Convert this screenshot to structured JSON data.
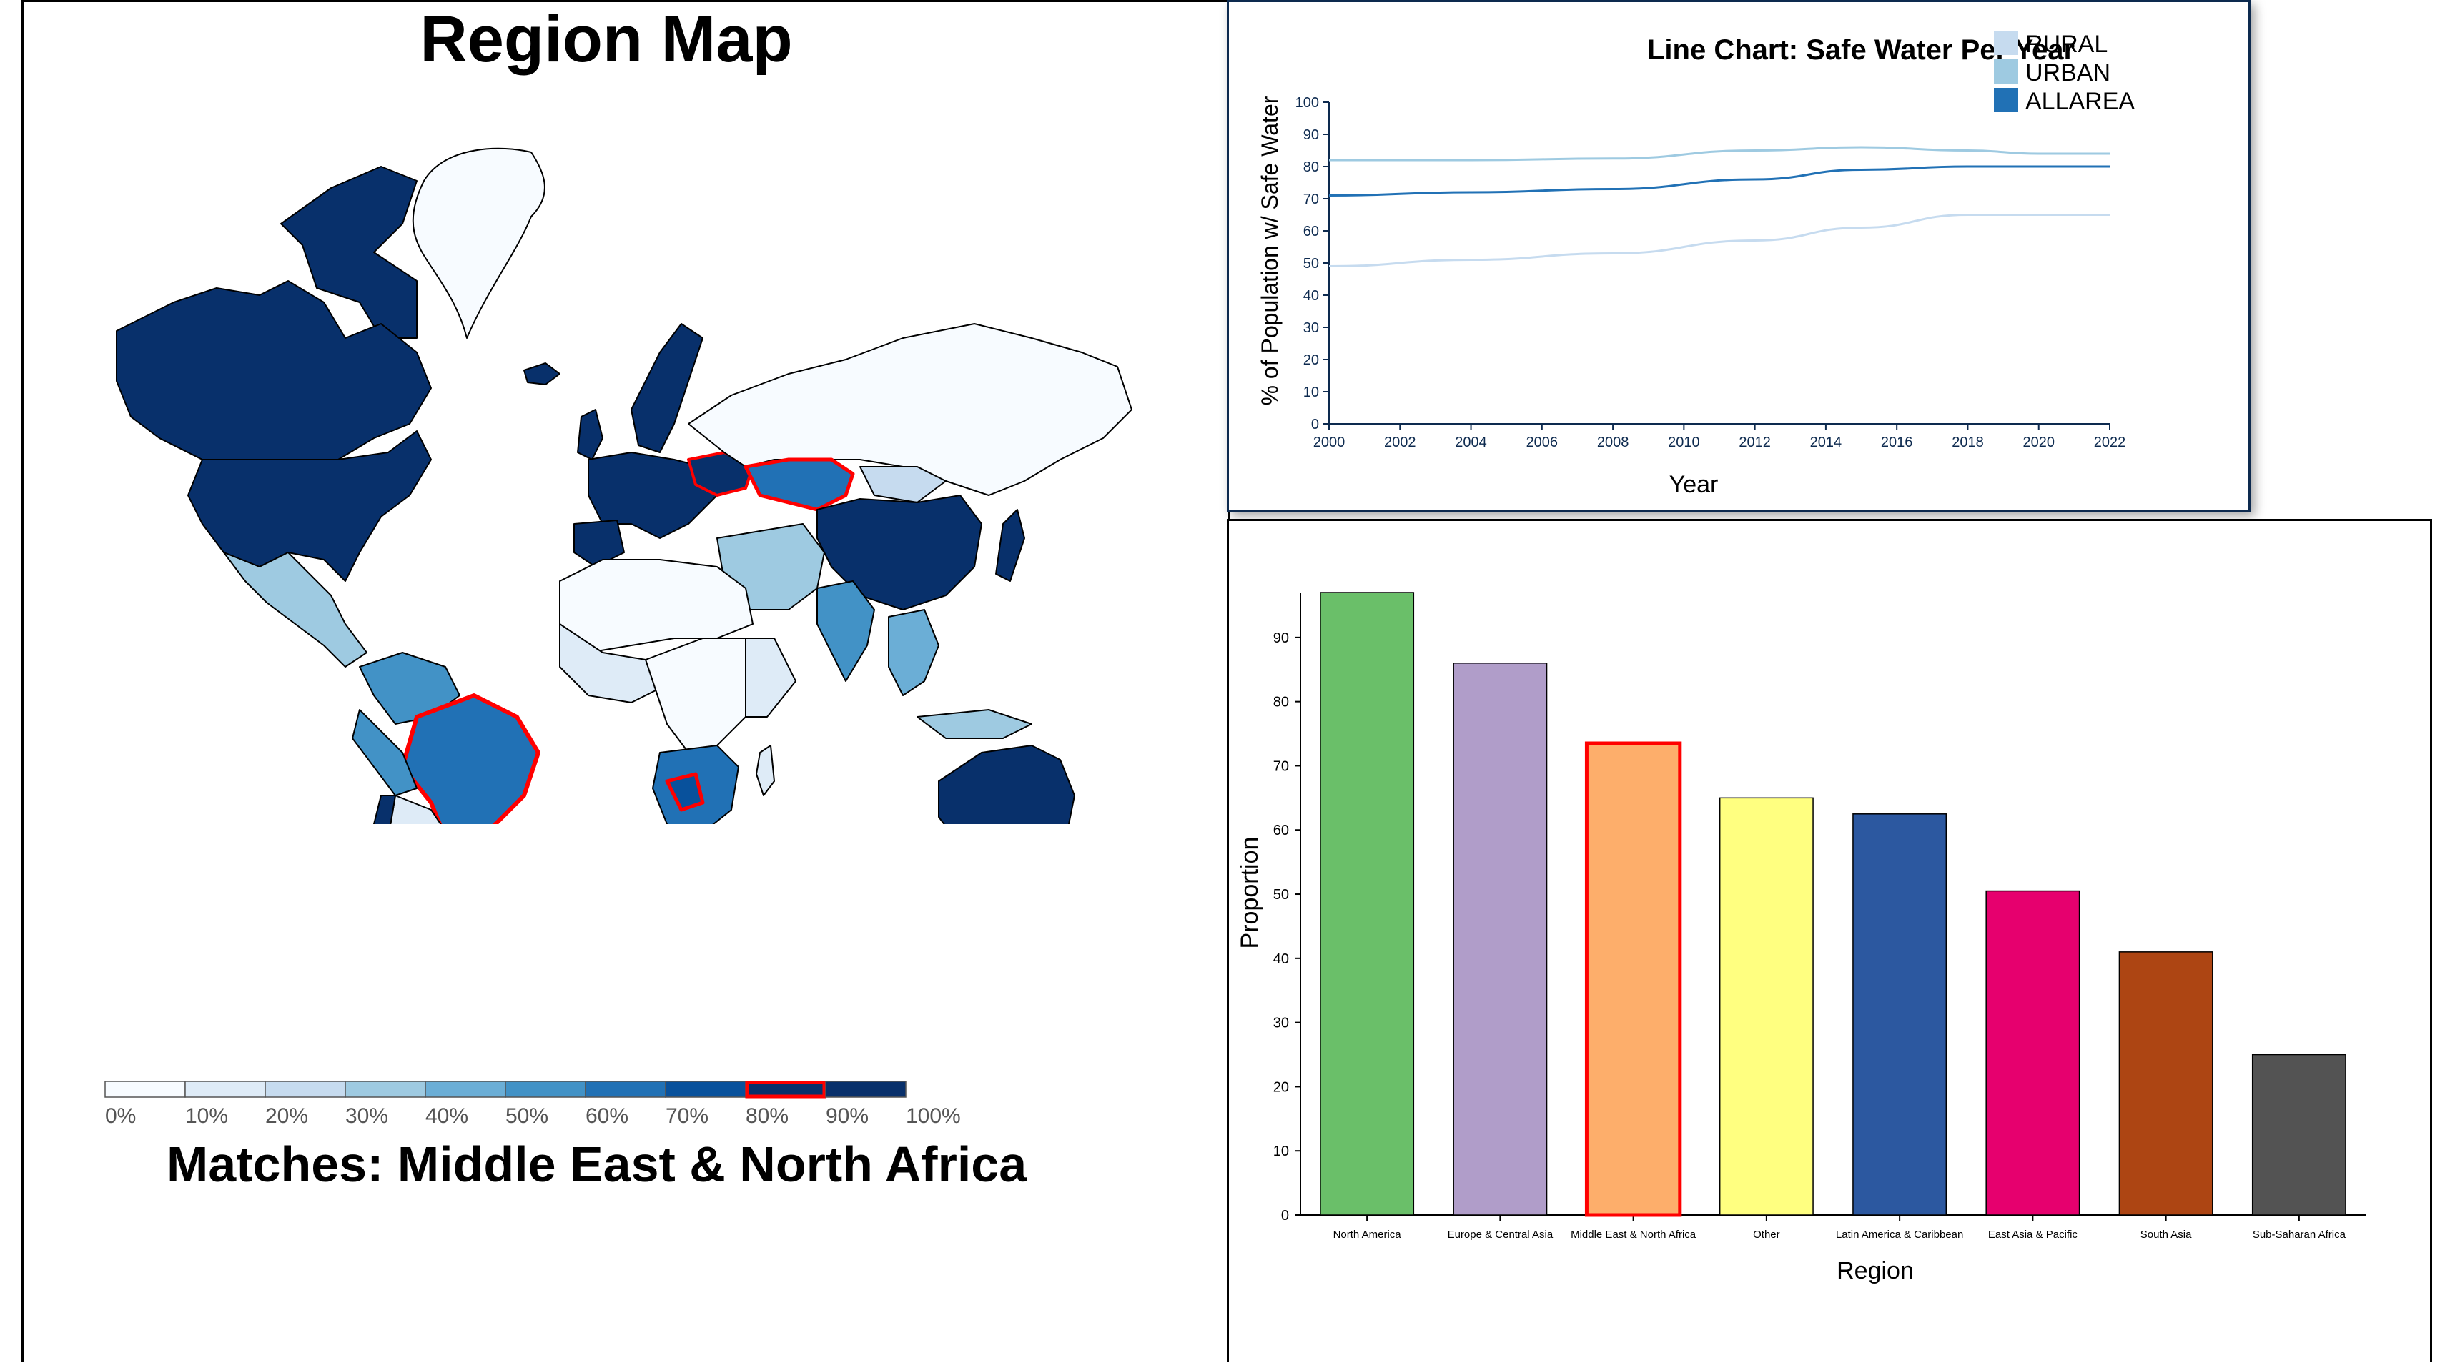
{
  "map": {
    "title": "Region Map",
    "matches_text": "Matches: Middle East & North Africa",
    "legend_labels": [
      "0%",
      "10%",
      "20%",
      "30%",
      "40%",
      "50%",
      "60%",
      "70%",
      "80%",
      "90%",
      "100%"
    ],
    "legend_colors": [
      "#f7fbff",
      "#deebf7",
      "#c6dbef",
      "#9ecae1",
      "#6baed6",
      "#4292c6",
      "#2171b5",
      "#08519c",
      "#08306b",
      "#08306b"
    ],
    "highlighted_bin": "80%",
    "highlight_color": "#ff0000"
  },
  "chart_data": [
    {
      "type": "line",
      "title": "Line Chart: Safe Water Per Year",
      "xlabel": "Year",
      "ylabel": "% of Population w/ Safe Water",
      "xlim": [
        2000,
        2022
      ],
      "ylim": [
        0,
        100
      ],
      "x_ticks": [
        2000,
        2002,
        2004,
        2006,
        2008,
        2010,
        2012,
        2014,
        2016,
        2018,
        2020,
        2022
      ],
      "y_ticks": [
        0,
        10,
        20,
        30,
        40,
        50,
        60,
        70,
        80,
        90,
        100
      ],
      "legend_position": "top-right",
      "x": [
        2000,
        2004,
        2008,
        2012,
        2015,
        2018,
        2020,
        2022
      ],
      "series": [
        {
          "name": "RURAL",
          "color": "#c6dbef",
          "values": [
            49,
            51,
            53,
            57,
            61,
            65,
            65,
            65
          ]
        },
        {
          "name": "URBAN",
          "color": "#9ecae1",
          "values": [
            82,
            82,
            82.5,
            85,
            86,
            85,
            84,
            84
          ]
        },
        {
          "name": "ALLAREA",
          "color": "#2171b5",
          "values": [
            71,
            72,
            73,
            76,
            79,
            80,
            80,
            80
          ]
        }
      ]
    },
    {
      "type": "bar",
      "xlabel": "Region",
      "ylabel": "Proportion",
      "ylim": [
        0,
        97
      ],
      "y_ticks": [
        0,
        10,
        20,
        30,
        40,
        50,
        60,
        70,
        80,
        90
      ],
      "categories": [
        "North America",
        "Europe & Central Asia",
        "Middle East & North Africa",
        "Other",
        "Latin America & Caribbean",
        "East Asia & Pacific",
        "South Asia",
        "Sub-Saharan Africa"
      ],
      "values": [
        97,
        86,
        73.5,
        65,
        62.5,
        50.5,
        41,
        25
      ],
      "colors": [
        "#6abf69",
        "#b09dc9",
        "#fdae6b",
        "#ffff80",
        "#2c58a0",
        "#e6006e",
        "#ad4513",
        "#535353"
      ],
      "highlighted": "Middle East & North Africa",
      "highlight_color": "#ff0000"
    }
  ]
}
